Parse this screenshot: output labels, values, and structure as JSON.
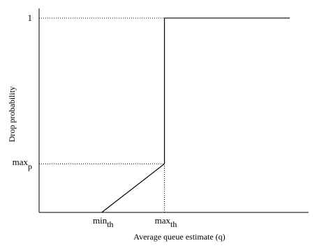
{
  "chart_data": {
    "type": "line",
    "title": "",
    "xlabel": "Average queue estimate (q)",
    "ylabel": "Drop probability",
    "x_ticks": [
      {
        "value": 1,
        "base": "min",
        "sub": "th"
      },
      {
        "value": 2,
        "base": "max",
        "sub": "th"
      }
    ],
    "y_ticks": [
      {
        "value": 0.25,
        "base": "max",
        "sub": "p"
      },
      {
        "value": 1,
        "label": "1"
      }
    ],
    "xlim": [
      0,
      4.3
    ],
    "ylim": [
      0,
      1.05
    ],
    "series": [
      {
        "x": [
          1,
          2,
          2,
          4
        ],
        "y": [
          0,
          0.25,
          1,
          1
        ]
      }
    ],
    "reference_lines": [
      {
        "from": [
          0,
          1
        ],
        "to": [
          2,
          1
        ],
        "style": "dotted"
      },
      {
        "from": [
          0,
          0.25
        ],
        "to": [
          2,
          0.25
        ],
        "style": "dotted"
      },
      {
        "from": [
          2,
          0
        ],
        "to": [
          2,
          0.25
        ],
        "style": "dotted"
      }
    ],
    "grid": false,
    "legend": "none",
    "colors": {
      "line": "#000000",
      "axis": "#000000"
    }
  }
}
